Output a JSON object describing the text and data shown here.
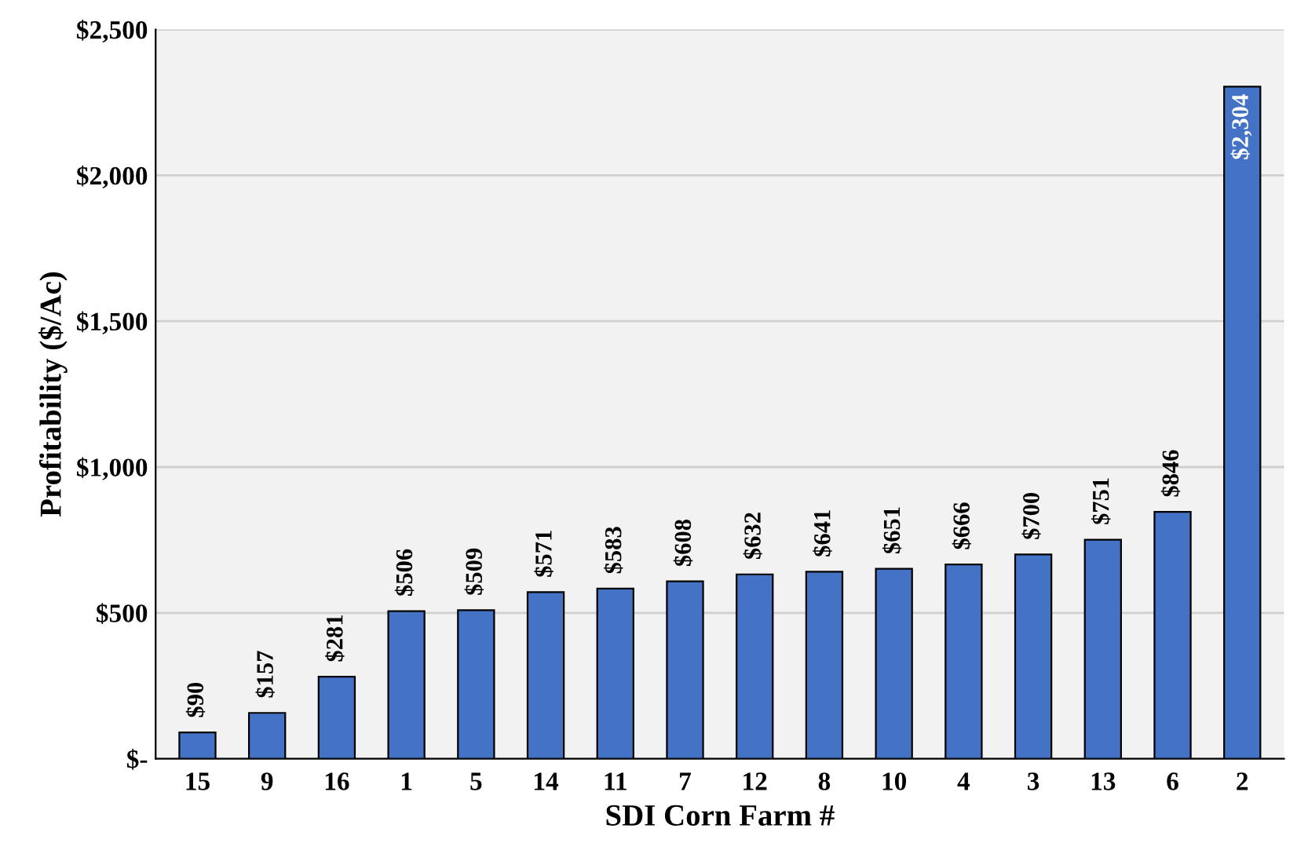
{
  "chart_data": {
    "type": "bar",
    "xlabel": "SDI Corn Farm #",
    "ylabel": "Profitability ($/Ac)",
    "categories": [
      "15",
      "9",
      "16",
      "1",
      "5",
      "14",
      "11",
      "7",
      "12",
      "8",
      "10",
      "4",
      "3",
      "13",
      "6",
      "2"
    ],
    "values": [
      90,
      157,
      281,
      506,
      509,
      571,
      583,
      608,
      632,
      641,
      651,
      666,
      700,
      751,
      846,
      2304
    ],
    "value_labels": [
      "$90",
      "$157",
      "$281",
      "$506",
      "$509",
      "$571",
      "$583",
      "$608",
      "$632",
      "$641",
      "$651",
      "$666",
      "$700",
      "$751",
      "$846",
      "$2,304"
    ],
    "color": "#4472c4",
    "ylim": [
      0,
      2500
    ],
    "yticks": [
      {
        "value": 0,
        "label": "$-"
      },
      {
        "value": 500,
        "label": "$500"
      },
      {
        "value": 1000,
        "label": "$1,000"
      },
      {
        "value": 1500,
        "label": "$1,500"
      },
      {
        "value": 2000,
        "label": "$2,000"
      },
      {
        "value": 2500,
        "label": "$2,500"
      }
    ],
    "grid": "y",
    "legend": false
  }
}
